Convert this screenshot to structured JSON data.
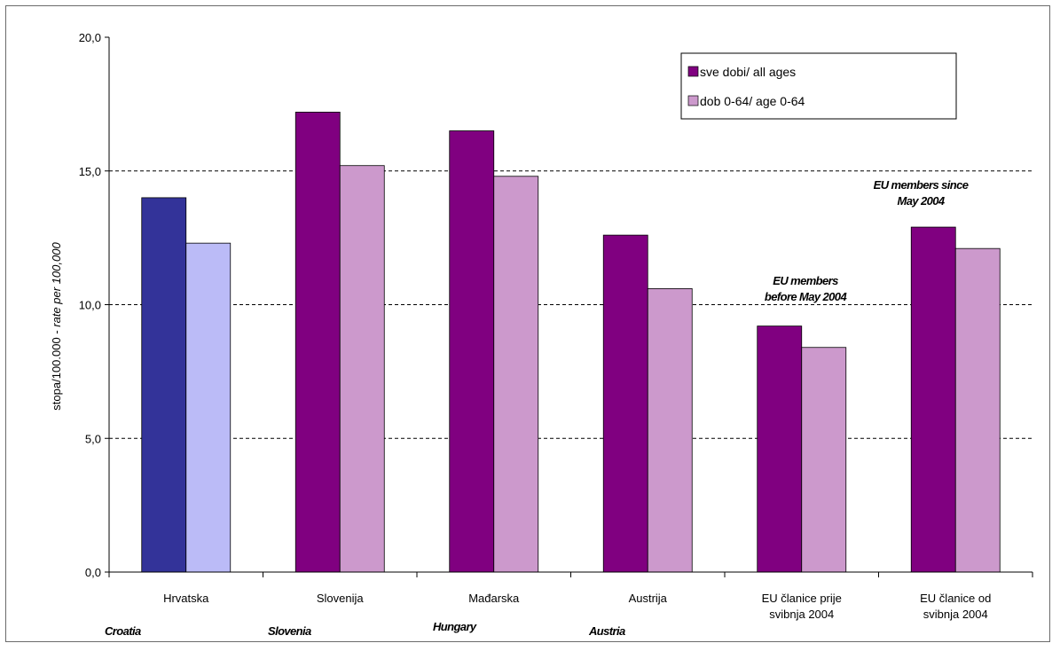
{
  "chart_data": {
    "type": "bar",
    "categories": [
      [
        "Hrvatska"
      ],
      [
        "Slovenija"
      ],
      [
        "Mađarska"
      ],
      [
        "Austrija"
      ],
      [
        "EU članice prije",
        "svibnja 2004"
      ],
      [
        "EU članice od",
        "svibnja 2004"
      ]
    ],
    "english_labels": [
      "Croatia",
      "Slovenia",
      "Hungary",
      "Austria",
      "",
      ""
    ],
    "series": [
      {
        "name": "sve dobi/ all ages",
        "values": [
          14.0,
          17.2,
          16.5,
          12.6,
          9.2,
          12.9
        ]
      },
      {
        "name": "dob 0-64/ age 0-64",
        "values": [
          12.3,
          15.2,
          14.8,
          10.6,
          8.4,
          12.1
        ]
      }
    ],
    "colors": {
      "series1": "#800080",
      "series2": "#CC99CC",
      "croatia_series1": "#333399",
      "croatia_series2": "#BBBBF7"
    },
    "ylabel_plain": "stopa/100.000 - ",
    "ylabel_italic": "rate per 100,000",
    "ylim": [
      0,
      20
    ],
    "yticks": [
      "0,0",
      "5,0",
      "10,0",
      "15,0",
      "20,0"
    ],
    "grid": "dashed horizontal at 5, 10, 15",
    "legend_position": "top-right",
    "annotations": [
      {
        "lines": [
          "EU members",
          "before May 2004"
        ]
      },
      {
        "lines": [
          "EU members since",
          "May 2004"
        ]
      }
    ]
  }
}
